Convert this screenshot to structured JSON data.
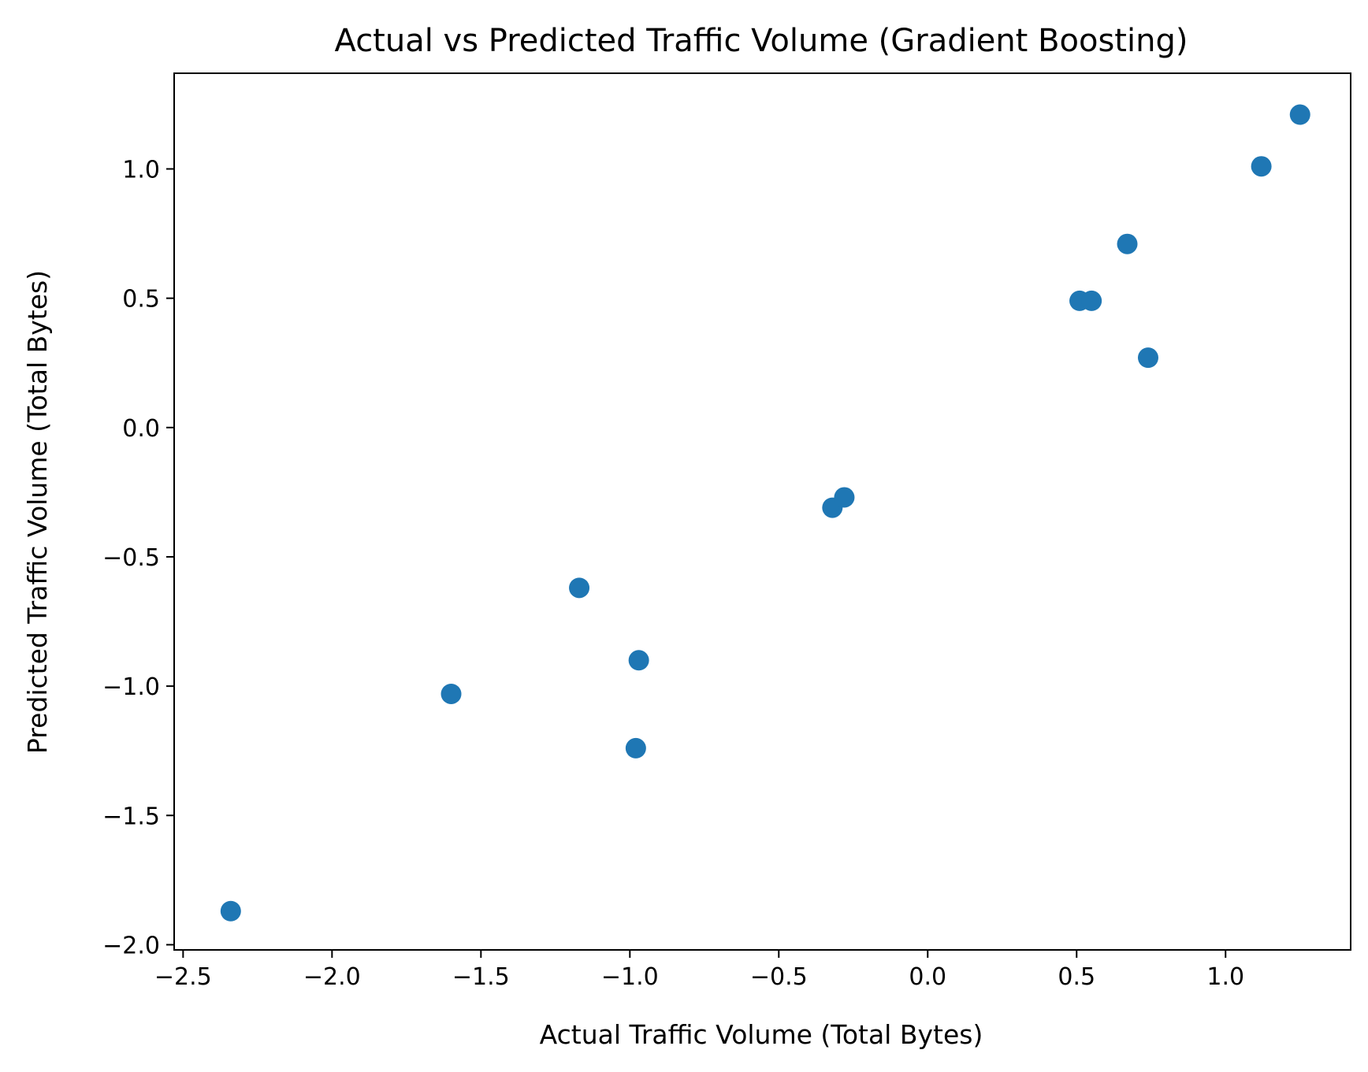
{
  "chart_data": {
    "type": "scatter",
    "title": "Actual vs Predicted Traffic Volume (Gradient Boosting)",
    "xlabel": "Actual Traffic Volume (Total Bytes)",
    "ylabel": "Predicted Traffic Volume (Total Bytes)",
    "xlim": [
      -2.53,
      1.42
    ],
    "ylim": [
      -2.02,
      1.37
    ],
    "xticks": [
      -2.5,
      -2.0,
      -1.5,
      -1.0,
      -0.5,
      0.0,
      0.5,
      1.0
    ],
    "xtick_labels": [
      "−2.5",
      "−2.0",
      "−1.5",
      "−1.0",
      "−0.5",
      "0.0",
      "0.5",
      "1.0"
    ],
    "yticks": [
      -2.0,
      -1.5,
      -1.0,
      -0.5,
      0.0,
      0.5,
      1.0
    ],
    "ytick_labels": [
      "−2.0",
      "−1.5",
      "−1.0",
      "−0.5",
      "0.0",
      "0.5",
      "1.0"
    ],
    "grid": false,
    "marker_color": "#1f77b4",
    "series": [
      {
        "points": [
          {
            "x": -2.34,
            "y": -1.87
          },
          {
            "x": -1.6,
            "y": -1.03
          },
          {
            "x": -1.17,
            "y": -0.62
          },
          {
            "x": -0.97,
            "y": -0.9
          },
          {
            "x": -0.98,
            "y": -1.24
          },
          {
            "x": -0.32,
            "y": -0.31
          },
          {
            "x": -0.28,
            "y": -0.27
          },
          {
            "x": 0.51,
            "y": 0.49
          },
          {
            "x": 0.55,
            "y": 0.49
          },
          {
            "x": 0.67,
            "y": 0.71
          },
          {
            "x": 0.74,
            "y": 0.27
          },
          {
            "x": 1.12,
            "y": 1.01
          },
          {
            "x": 1.25,
            "y": 1.21
          }
        ]
      }
    ]
  }
}
